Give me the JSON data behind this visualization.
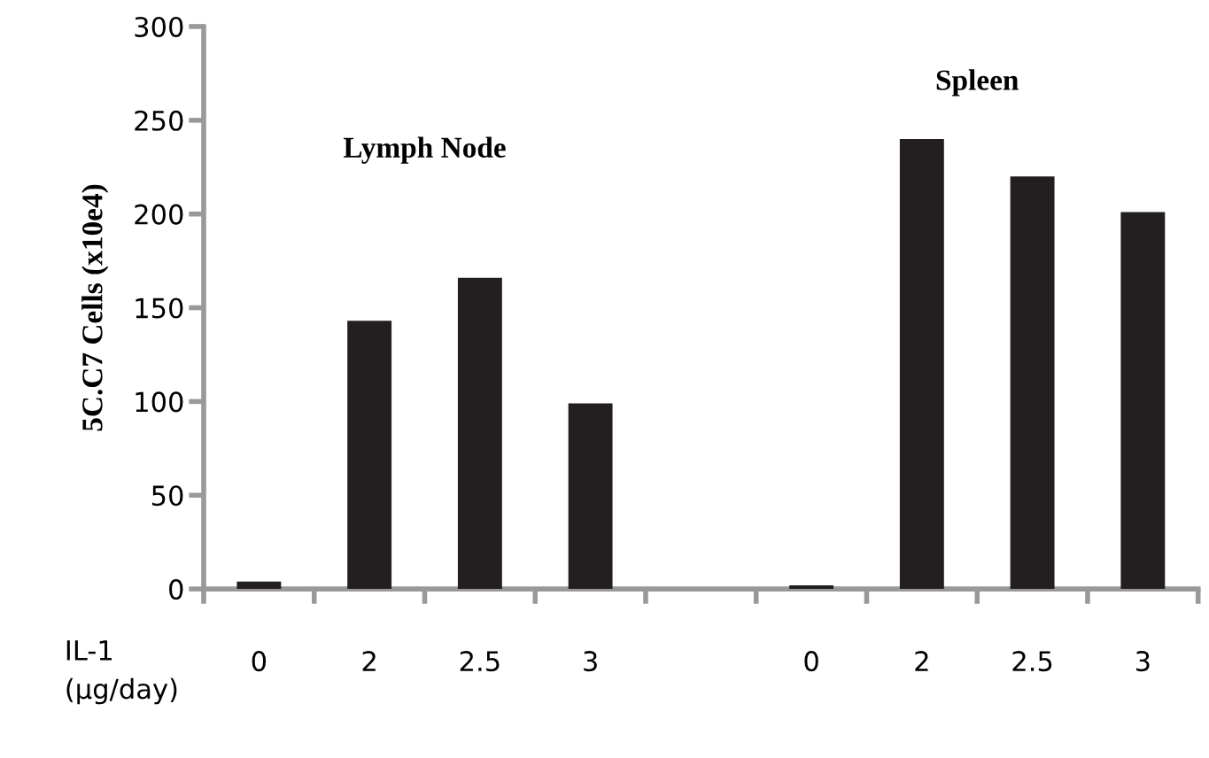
{
  "chart_data": {
    "type": "bar",
    "ylabel": "5C.C7 Cells (x10e4)",
    "xlabel": "IL-1\n(μg/day)",
    "categories": [
      "0",
      "2",
      "2.5",
      "3",
      null,
      "0",
      "2",
      "2.5",
      "3"
    ],
    "values": [
      4,
      143,
      166,
      99,
      null,
      2,
      240,
      220,
      201
    ],
    "color": "#231f20",
    "ylim": [
      0,
      300
    ],
    "yticks": [
      0,
      50,
      100,
      150,
      200,
      250,
      300
    ],
    "grid": false,
    "legend": false,
    "annotations": [
      "Lymph Node",
      "Spleen"
    ]
  }
}
